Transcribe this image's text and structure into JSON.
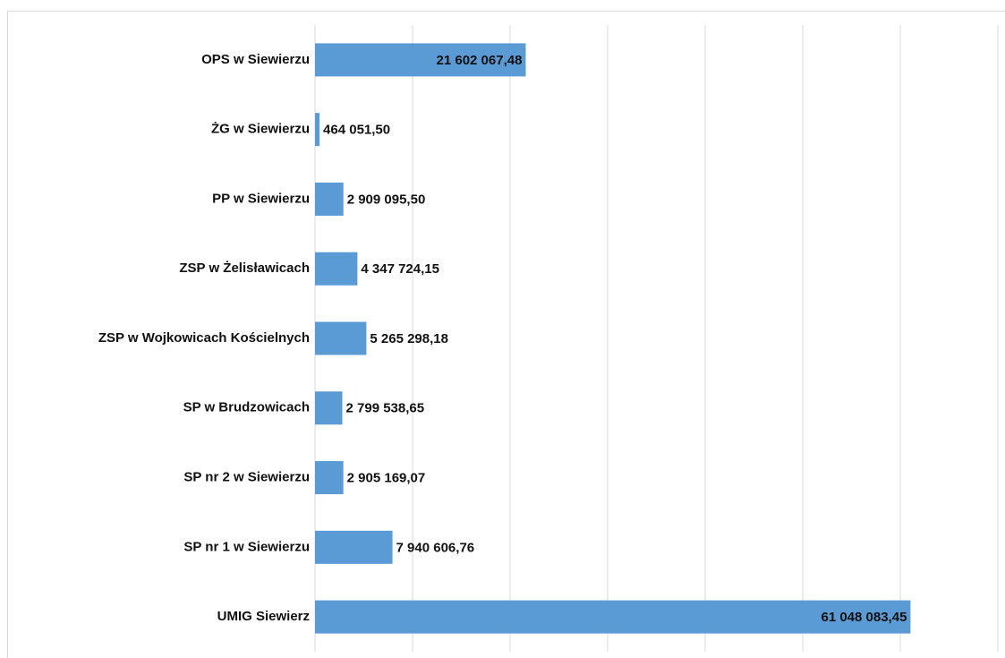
{
  "chart_data": {
    "type": "bar",
    "orientation": "horizontal",
    "categories": [
      "OPS w Siewierzu",
      "ŻG w Siewierzu",
      "PP w Siewierzu",
      "ZSP w Żelisławicach",
      "ZSP w Wojkowicach Kościelnych",
      "SP w Brudzowicach",
      "SP nr 2 w Siewierzu",
      "SP nr 1 w Siewierzu",
      "UMIG Siewierz"
    ],
    "values": [
      21602067.48,
      464051.5,
      2909095.5,
      4347724.15,
      5265298.18,
      2799538.65,
      2905169.07,
      7940606.76,
      61048083.45
    ],
    "value_labels": [
      "21 602 067,48",
      "464 051,50",
      "2 909 095,50",
      "4 347 724,15",
      "5 265 298,18",
      "2 799 538,65",
      "2 905 169,07",
      "7 940 606,76",
      "61 048 083,45"
    ],
    "color": "#5b9bd5",
    "xlim": [
      0,
      70000000
    ],
    "xticks": [
      0,
      10000000,
      20000000,
      30000000,
      40000000,
      50000000,
      60000000,
      70000000
    ],
    "grid": true
  }
}
